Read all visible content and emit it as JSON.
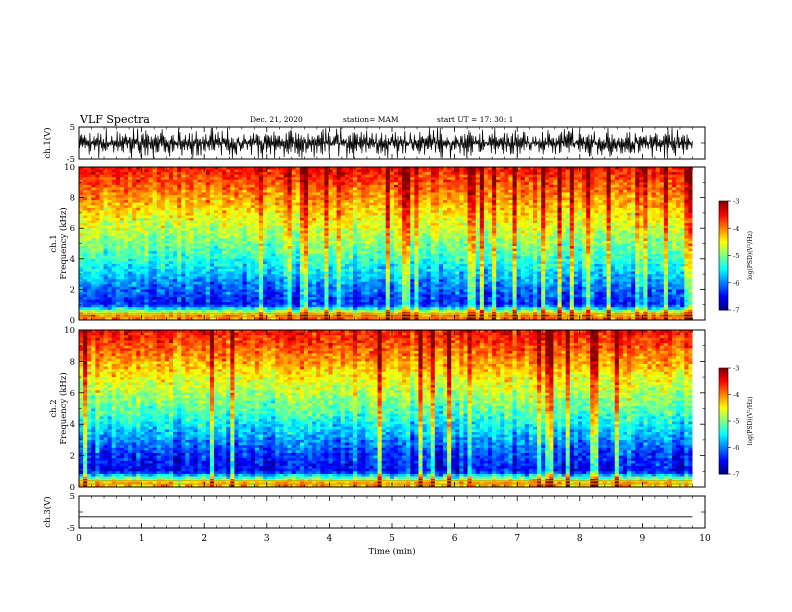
{
  "header": {
    "title": "VLF Spectra",
    "date": "Dec. 21, 2020",
    "station": "station= MAM",
    "start": "start  UT =   17: 30: 1"
  },
  "chart_data": [
    {
      "type": "line",
      "panel": "ch1-waveform",
      "ylabel": "ch.1(V)",
      "ylim": [
        -5,
        5
      ],
      "yticks": [
        "5",
        "-5"
      ],
      "x_range_min": [
        0,
        9.8
      ],
      "description_values": "dense noise waveform, amplitude roughly -5 to 5 V"
    },
    {
      "type": "heatmap",
      "panel": "ch1-spectrogram",
      "ylabel": "ch.1\nFrequency (kHz)",
      "ylim": [
        0,
        10
      ],
      "yticks": [
        "0",
        "2",
        "4",
        "6",
        "8",
        "10"
      ],
      "x_range_min": [
        0,
        9.8
      ],
      "colorbar": {
        "label": "log(PSD)(V²/Hz)",
        "range": [
          -7,
          -3
        ],
        "ticks": [
          "-3",
          "-4",
          "-5",
          "-6",
          "-7"
        ]
      },
      "level_by_frequency_kHz": [
        {
          "f": 0.3,
          "log_psd": -4.0
        },
        {
          "f": 1.0,
          "log_psd": -6.4
        },
        {
          "f": 2.0,
          "log_psd": -6.1
        },
        {
          "f": 3.0,
          "log_psd": -5.7
        },
        {
          "f": 4.0,
          "log_psd": -5.3
        },
        {
          "f": 5.0,
          "log_psd": -5.0
        },
        {
          "f": 6.0,
          "log_psd": -4.7
        },
        {
          "f": 7.0,
          "log_psd": -4.4
        },
        {
          "f": 8.0,
          "log_psd": -4.1
        },
        {
          "f": 9.0,
          "log_psd": -3.8
        },
        {
          "f": 10.0,
          "log_psd": -3.5
        }
      ]
    },
    {
      "type": "heatmap",
      "panel": "ch2-spectrogram",
      "ylabel": "ch.2\nFrequency (kHz)",
      "ylim": [
        0,
        10
      ],
      "yticks": [
        "0",
        "2",
        "4",
        "6",
        "8",
        "10"
      ],
      "x_range_min": [
        0,
        9.8
      ],
      "colorbar": {
        "label": "log(PSD)(V²/Hz)",
        "range": [
          -7,
          -3
        ],
        "ticks": [
          "-3",
          "-4",
          "-5",
          "-6",
          "-7"
        ]
      },
      "level_by_frequency_kHz": [
        {
          "f": 0.3,
          "log_psd": -4.2
        },
        {
          "f": 1.0,
          "log_psd": -6.5
        },
        {
          "f": 2.0,
          "log_psd": -6.3
        },
        {
          "f": 3.0,
          "log_psd": -5.9
        },
        {
          "f": 4.0,
          "log_psd": -5.5
        },
        {
          "f": 5.0,
          "log_psd": -5.1
        },
        {
          "f": 6.0,
          "log_psd": -4.8
        },
        {
          "f": 7.0,
          "log_psd": -4.5
        },
        {
          "f": 8.0,
          "log_psd": -4.1
        },
        {
          "f": 9.0,
          "log_psd": -3.8
        },
        {
          "f": 10.0,
          "log_psd": -3.5
        }
      ]
    },
    {
      "type": "line",
      "panel": "ch3-waveform",
      "ylabel": "ch.3(V)",
      "ylim": [
        -5,
        5
      ],
      "yticks": [
        "5",
        "-5"
      ],
      "x": [
        0,
        9.8
      ],
      "y": [
        -1.5,
        -1.5
      ]
    }
  ],
  "xaxis": {
    "label": "Time  (min)",
    "range": [
      0,
      10
    ],
    "ticks": [
      "0",
      "1",
      "2",
      "3",
      "4",
      "5",
      "6",
      "7",
      "8",
      "9",
      "10"
    ]
  }
}
